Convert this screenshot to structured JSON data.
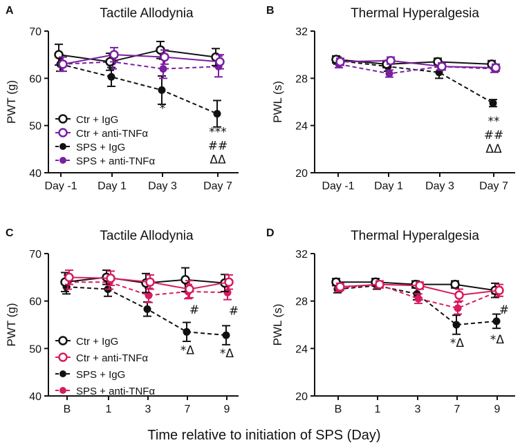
{
  "figure": {
    "xlabel": "Time relative to initiation of SPS (Day)"
  },
  "chart_data": [
    {
      "panel": "A",
      "type": "line",
      "title": "Tactile Allodynia",
      "xlabel": "",
      "ylabel": "PWT (g)",
      "categories": [
        "Day -1",
        "Day 1",
        "Day 3",
        "Day 7"
      ],
      "ylim": [
        40,
        70
      ],
      "yticks": [
        "40",
        "50",
        "60",
        "70"
      ],
      "legend_position": "bottom-left",
      "series": [
        {
          "name": "Ctr + IgG",
          "color": "#111111",
          "marker": "open",
          "dashed": false,
          "values": [
            65.0,
            63.5,
            66.0,
            64.5
          ],
          "errors": [
            2.2,
            1.8,
            1.8,
            1.8
          ]
        },
        {
          "name": "Ctr + anti-TNFα",
          "color": "#7b1fa2",
          "marker": "open",
          "dashed": false,
          "values": [
            63.0,
            65.0,
            64.5,
            63.5
          ],
          "errors": [
            1.5,
            1.5,
            1.5,
            1.5
          ]
        },
        {
          "name": "SPS + IgG",
          "color": "#111111",
          "marker": "filled",
          "dashed": true,
          "values": [
            63.0,
            60.3,
            57.5,
            52.5
          ],
          "errors": [
            1.5,
            2.0,
            3.0,
            2.8
          ]
        },
        {
          "name": "SPS + anti-TNFα",
          "color": "#7b1fa2",
          "marker": "filled",
          "dashed": true,
          "values": [
            63.0,
            63.5,
            62.0,
            62.5
          ],
          "errors": [
            1.5,
            1.5,
            2.0,
            2.2
          ]
        }
      ],
      "annotations": [
        {
          "category_index": 2,
          "value": 57.5,
          "lines": [
            "*"
          ]
        },
        {
          "category_index": 3,
          "value": 52.5,
          "lines": [
            "***",
            "##",
            "ΔΔ"
          ]
        }
      ]
    },
    {
      "panel": "B",
      "type": "line",
      "title": "Thermal Hyperalgesia",
      "xlabel": "",
      "ylabel": "PWL (s)",
      "categories": [
        "Day -1",
        "Day 1",
        "Day 3",
        "Day 7"
      ],
      "ylim": [
        20,
        32
      ],
      "yticks": [
        "20",
        "24",
        "28",
        "32"
      ],
      "legend_position": "none",
      "series": [
        {
          "name": "Ctr + IgG",
          "color": "#111111",
          "marker": "open",
          "dashed": false,
          "values": [
            29.6,
            29.2,
            29.4,
            29.2
          ],
          "errors": [
            0.3,
            0.3,
            0.3,
            0.3
          ]
        },
        {
          "name": "Ctr + anti-TNFα",
          "color": "#7b1fa2",
          "marker": "open",
          "dashed": false,
          "values": [
            29.4,
            29.5,
            29.0,
            28.9
          ],
          "errors": [
            0.3,
            0.3,
            0.3,
            0.3
          ]
        },
        {
          "name": "SPS + IgG",
          "color": "#111111",
          "marker": "filled",
          "dashed": true,
          "values": [
            29.5,
            29.0,
            28.5,
            25.9
          ],
          "errors": [
            0.3,
            0.4,
            0.5,
            0.3
          ]
        },
        {
          "name": "SPS + anti-TNFα",
          "color": "#7b1fa2",
          "marker": "filled",
          "dashed": true,
          "values": [
            29.2,
            28.4,
            29.0,
            28.8
          ],
          "errors": [
            0.3,
            0.3,
            0.3,
            0.3
          ]
        }
      ],
      "annotations": [
        {
          "category_index": 3,
          "value": 25.9,
          "lines": [
            "**",
            "##",
            "ΔΔ"
          ]
        }
      ]
    },
    {
      "panel": "C",
      "type": "line",
      "title": "Tactile Allodynia",
      "xlabel": "",
      "ylabel": "PWT (g)",
      "categories": [
        "B",
        "1",
        "3",
        "7",
        "9"
      ],
      "ylim": [
        40,
        70
      ],
      "yticks": [
        "40",
        "50",
        "60",
        "70"
      ],
      "legend_position": "bottom-left",
      "series": [
        {
          "name": "Ctr + IgG",
          "color": "#111111",
          "marker": "open",
          "dashed": false,
          "values": [
            64.0,
            65.0,
            63.8,
            64.5,
            63.8
          ],
          "errors": [
            2.0,
            1.5,
            2.0,
            2.5,
            1.8
          ]
        },
        {
          "name": "Ctr + anti-TNFα",
          "color": "#d81b60",
          "marker": "open",
          "dashed": false,
          "values": [
            65.0,
            64.8,
            64.0,
            62.5,
            64.0
          ],
          "errors": [
            1.5,
            1.5,
            1.5,
            1.8,
            1.5
          ]
        },
        {
          "name": "SPS + IgG",
          "color": "#111111",
          "marker": "filled",
          "dashed": true,
          "values": [
            63.0,
            62.5,
            58.3,
            53.5,
            52.8
          ],
          "errors": [
            1.5,
            1.5,
            1.5,
            2.0,
            2.0
          ]
        },
        {
          "name": "SPS + anti-TNFα",
          "color": "#d81b60",
          "marker": "filled",
          "dashed": true,
          "values": [
            64.0,
            64.0,
            61.2,
            62.0,
            61.8
          ],
          "errors": [
            1.5,
            1.5,
            1.5,
            1.5,
            1.5
          ]
        }
      ],
      "annotations": [
        {
          "category_index": 3,
          "value": 62.0,
          "lines": [
            "#"
          ]
        },
        {
          "category_index": 4,
          "value": 61.8,
          "lines": [
            "#"
          ]
        },
        {
          "category_index": 3,
          "value": 53.5,
          "lines": [
            "*Δ"
          ]
        },
        {
          "category_index": 4,
          "value": 52.8,
          "lines": [
            "*Δ"
          ]
        }
      ]
    },
    {
      "panel": "D",
      "type": "line",
      "title": "Thermal Hyperalgesia",
      "xlabel": "",
      "ylabel": "PWL (s)",
      "categories": [
        "B",
        "1",
        "3",
        "7",
        "9"
      ],
      "ylim": [
        20,
        32
      ],
      "yticks": [
        "20",
        "24",
        "28",
        "32"
      ],
      "legend_position": "none",
      "series": [
        {
          "name": "Ctr + IgG",
          "color": "#111111",
          "marker": "open",
          "dashed": false,
          "values": [
            29.6,
            29.6,
            29.4,
            29.4,
            28.9
          ],
          "errors": [
            0.3,
            0.3,
            0.3,
            0.3,
            0.6
          ]
        },
        {
          "name": "Ctr + anti-TNFα",
          "color": "#d81b60",
          "marker": "open",
          "dashed": false,
          "values": [
            29.2,
            29.4,
            29.3,
            28.5,
            28.9
          ],
          "errors": [
            0.3,
            0.3,
            0.3,
            0.5,
            0.5
          ]
        },
        {
          "name": "SPS + IgG",
          "color": "#111111",
          "marker": "filled",
          "dashed": true,
          "values": [
            29.0,
            29.3,
            28.6,
            26.0,
            26.3
          ],
          "errors": [
            0.3,
            0.3,
            0.5,
            0.8,
            0.6
          ]
        },
        {
          "name": "SPS + anti-TNFα",
          "color": "#d81b60",
          "marker": "filled",
          "dashed": true,
          "values": [
            29.1,
            29.4,
            28.2,
            27.4,
            28.8
          ],
          "errors": [
            0.3,
            0.3,
            0.4,
            0.5,
            0.4
          ]
        }
      ],
      "annotations": [
        {
          "category_index": 3,
          "value": 27.4,
          "lines": [
            "*"
          ]
        },
        {
          "category_index": 4,
          "value": 28.8,
          "lines": [
            "#"
          ]
        },
        {
          "category_index": 3,
          "value": 26.0,
          "lines": [
            "*Δ"
          ]
        },
        {
          "category_index": 4,
          "value": 26.3,
          "lines": [
            "*Δ"
          ]
        }
      ]
    }
  ]
}
